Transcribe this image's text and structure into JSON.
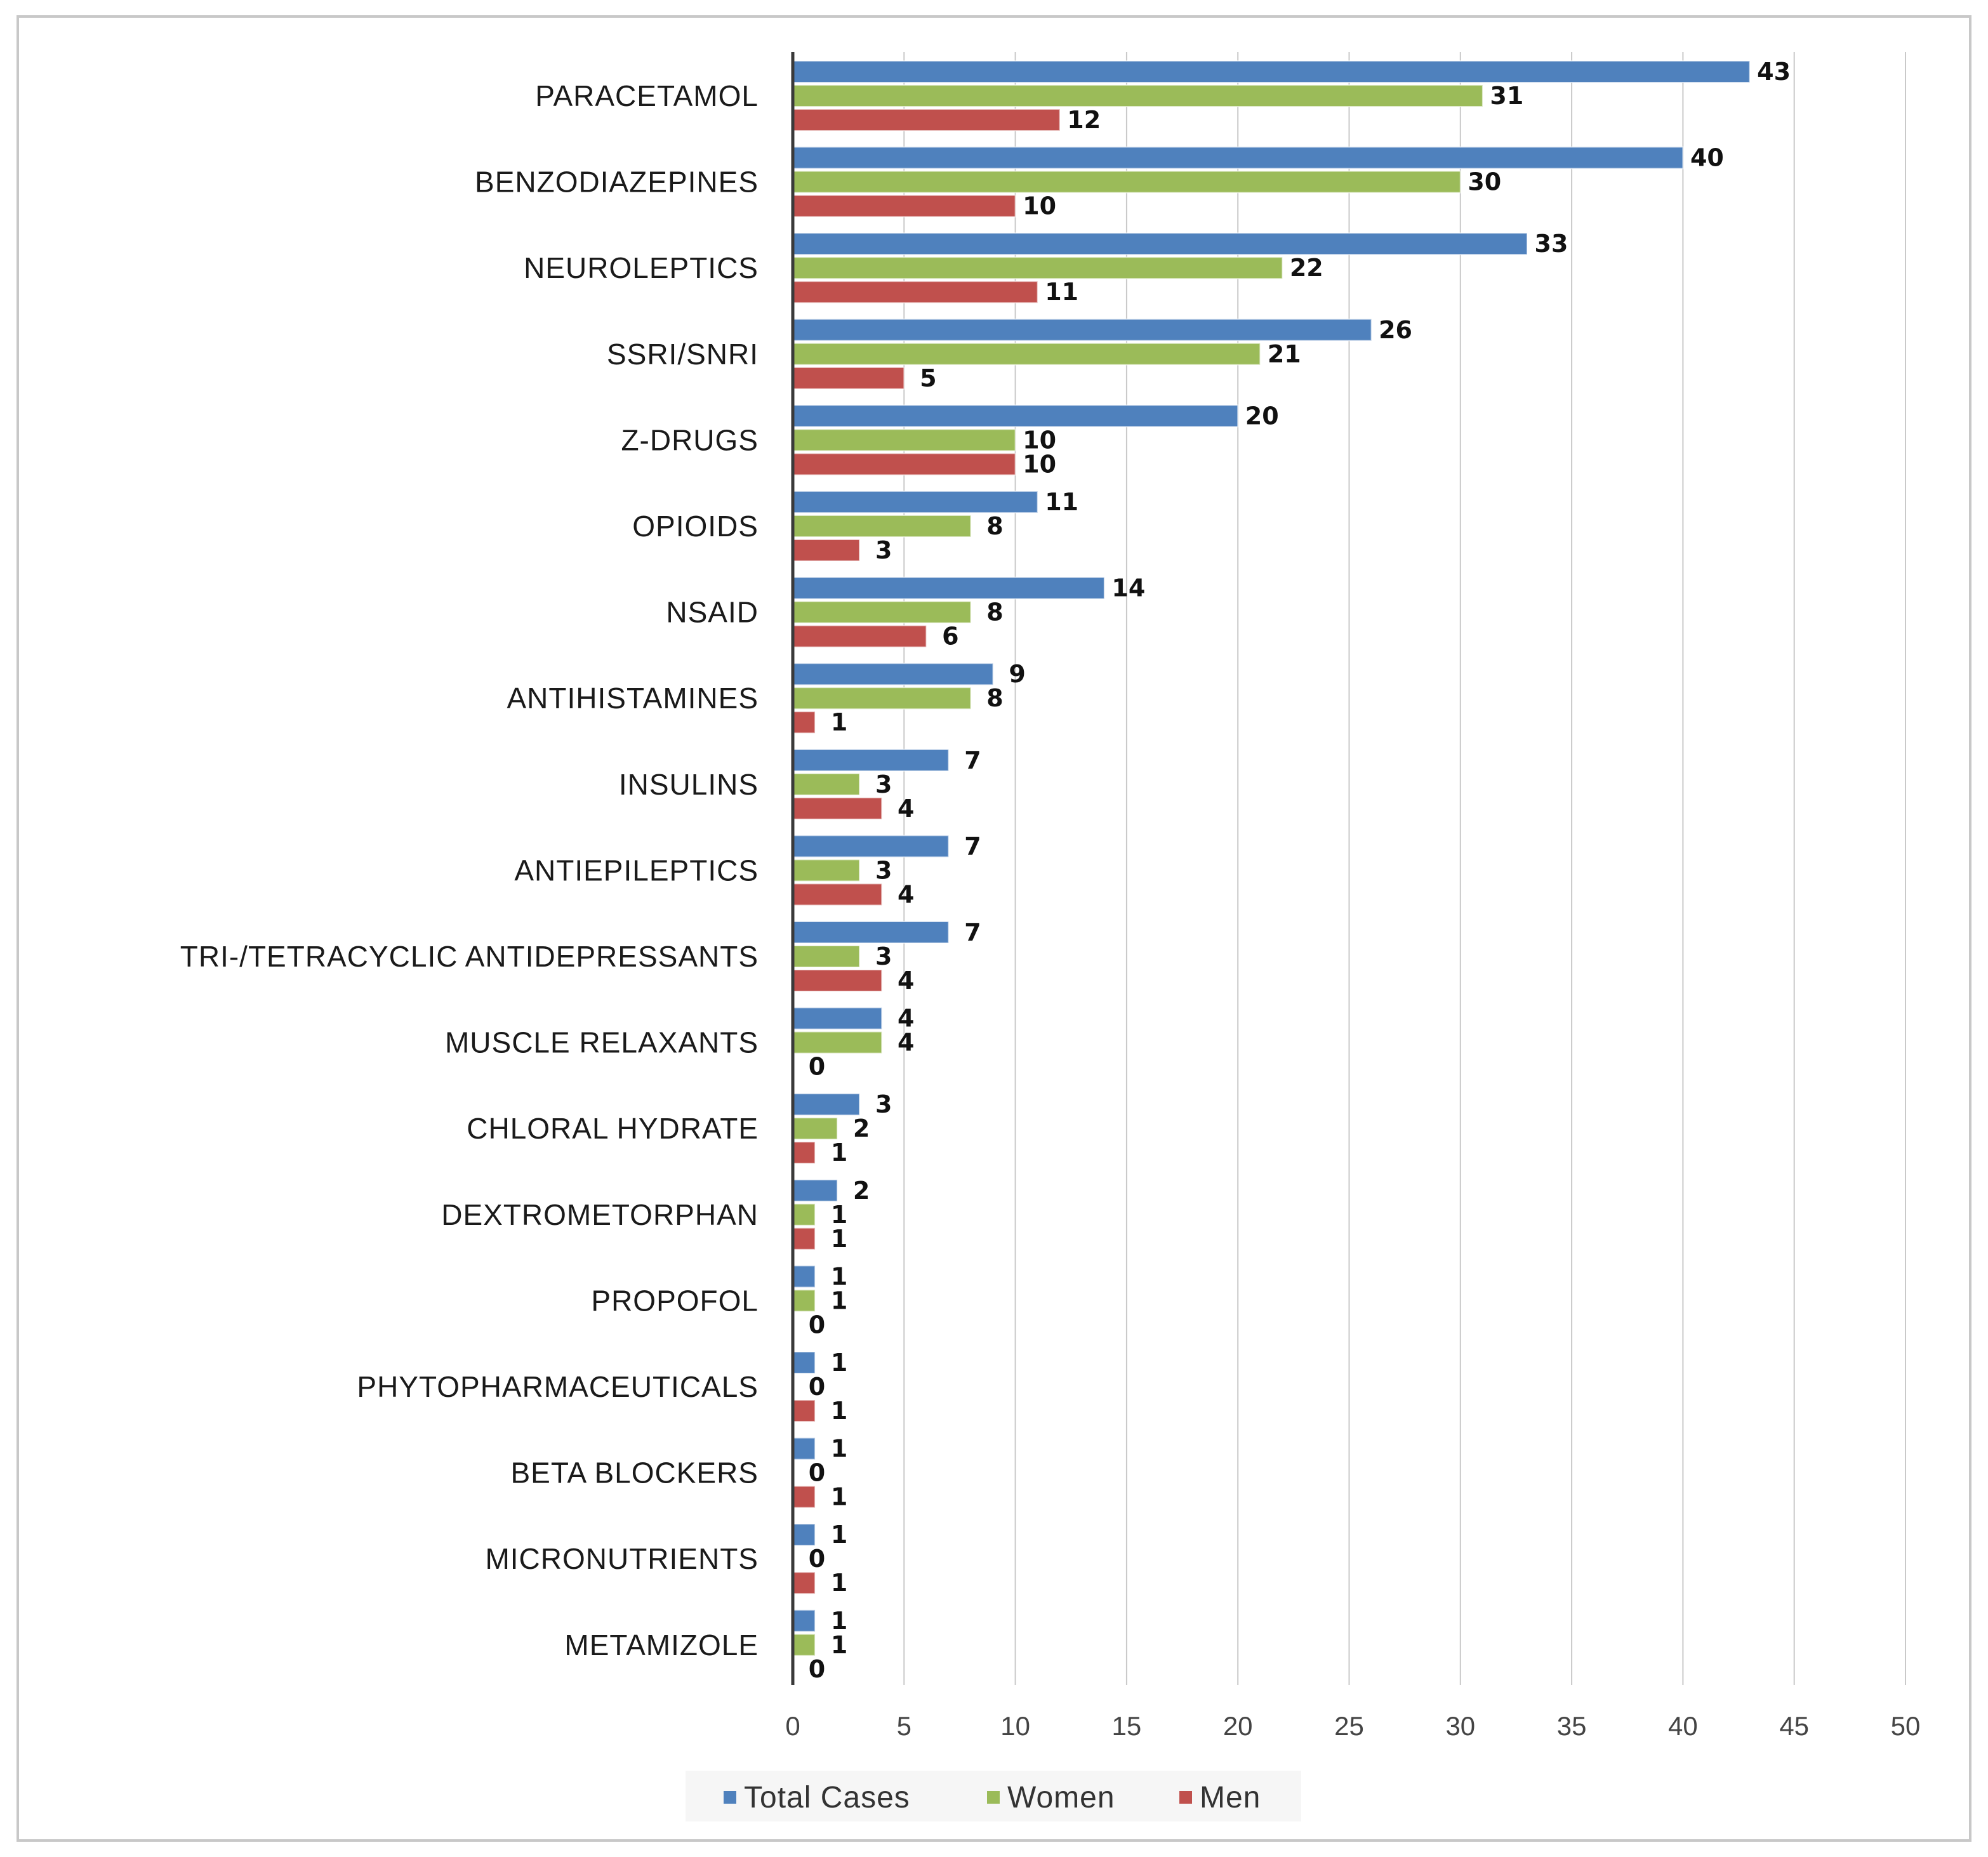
{
  "chart_data": {
    "type": "bar",
    "orientation": "horizontal",
    "categories": [
      "PARACETAMOL",
      "BENZODIAZEPINES",
      "NEUROLEPTICS",
      "SSRI/SNRI",
      "Z-DRUGS",
      "OPIOIDS",
      "NSAID",
      "ANTIHISTAMINES",
      "INSULINS",
      "ANTIEPILEPTICS",
      "TRI-/TETRACYCLIC ANTIDEPRESSANTS",
      "MUSCLE RELAXANTS",
      "CHLORAL HYDRATE",
      "DEXTROMETORPHAN",
      "PROPOFOL",
      "PHYTOPHARMACEUTICALS",
      "BETA BLOCKERS",
      "MICRONUTRIENTS",
      "METAMIZOLE"
    ],
    "series": [
      {
        "name": "Total Cases",
        "color": "#4f81bd",
        "values": [
          43,
          40,
          33,
          26,
          20,
          11,
          14,
          9,
          7,
          7,
          7,
          4,
          3,
          2,
          1,
          1,
          1,
          1,
          1
        ]
      },
      {
        "name": "Women",
        "color": "#9bbb59",
        "values": [
          31,
          30,
          22,
          21,
          10,
          8,
          8,
          8,
          3,
          3,
          3,
          4,
          2,
          1,
          1,
          0,
          0,
          0,
          1
        ]
      },
      {
        "name": "Men",
        "color": "#c0504d",
        "values": [
          12,
          10,
          11,
          5,
          10,
          3,
          6,
          1,
          4,
          4,
          4,
          0,
          1,
          1,
          0,
          1,
          1,
          1,
          0
        ]
      }
    ],
    "xlim": [
      0,
      50
    ],
    "xticks": [
      0,
      5,
      10,
      15,
      20,
      25,
      30,
      35,
      40,
      45,
      50
    ],
    "grid": "vertical",
    "legend_position": "bottom",
    "data_labels": true
  }
}
